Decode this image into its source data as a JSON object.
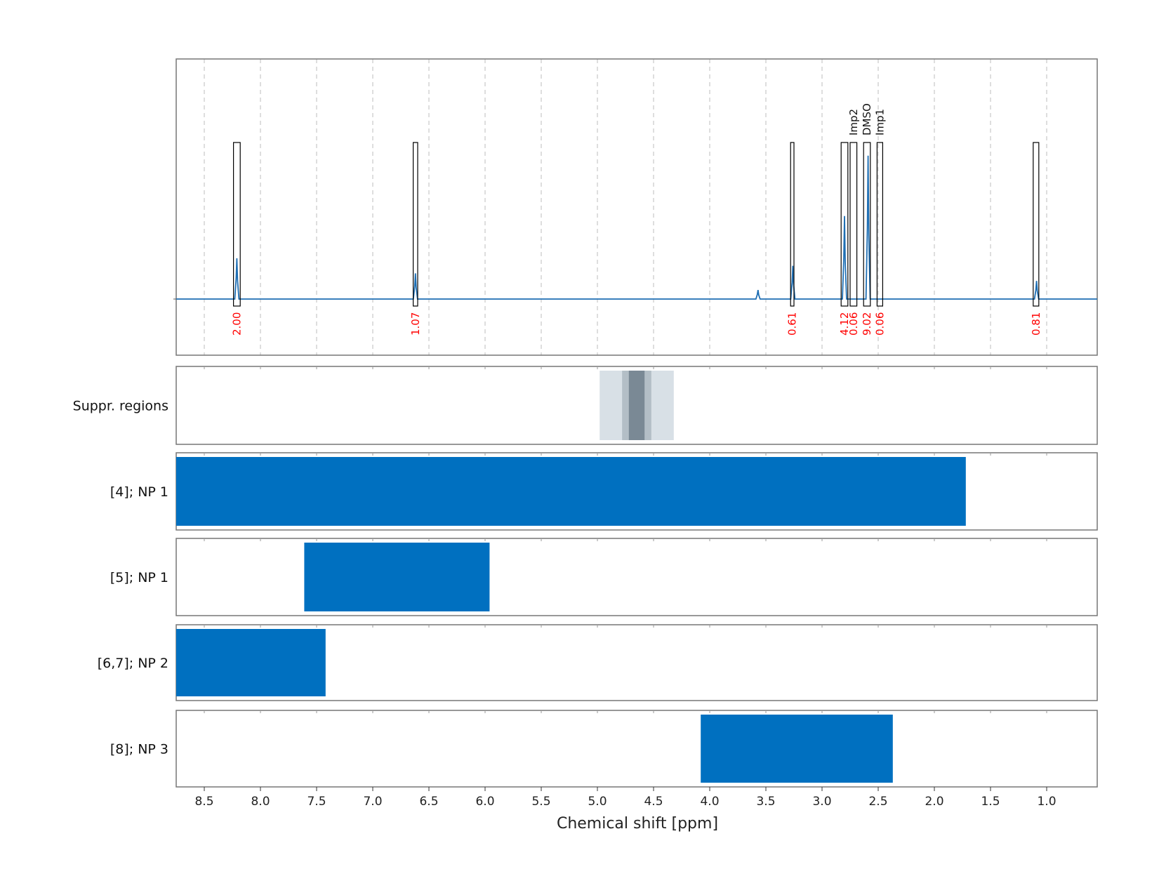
{
  "chart_data": {
    "type": "nmr-spectrum-with-range-bars",
    "xlabel": "Chemical shift [ppm]",
    "xlim": [
      8.75,
      0.55
    ],
    "x_ticks": [
      "8.5",
      "8.0",
      "7.5",
      "7.0",
      "6.5",
      "6.0",
      "5.5",
      "5.0",
      "4.5",
      "4.0",
      "3.5",
      "3.0",
      "2.5",
      "2.0",
      "1.5",
      "1.0"
    ],
    "x_tick_values": [
      8.5,
      8.0,
      7.5,
      7.0,
      6.5,
      6.0,
      5.5,
      5.0,
      4.5,
      4.0,
      3.5,
      3.0,
      2.5,
      2.0,
      1.5,
      1.0
    ],
    "colors": {
      "spectrum": "#1f6fb4",
      "bar": "#0070c0",
      "integral": "#ff0000",
      "suppr_light": "#d8e0e6",
      "suppr_mid": "#b3bec6",
      "suppr_dark": "#7a8995"
    },
    "spectrum_peaks": [
      {
        "ppm": 8.21,
        "height": 0.27
      },
      {
        "ppm": 6.62,
        "height": 0.17
      },
      {
        "ppm": 3.57,
        "height": 0.06
      },
      {
        "ppm": 3.26,
        "height": 0.22
      },
      {
        "ppm": 2.8,
        "height": 0.55
      },
      {
        "ppm": 2.59,
        "height": 0.95
      },
      {
        "ppm": 1.09,
        "height": 0.12
      }
    ],
    "integration_regions": [
      {
        "from": 8.24,
        "to": 8.18,
        "value": "2.00",
        "name": ""
      },
      {
        "from": 6.64,
        "to": 6.6,
        "value": "1.07",
        "name": ""
      },
      {
        "from": 3.28,
        "to": 3.25,
        "value": "0.61",
        "name": ""
      },
      {
        "from": 2.83,
        "to": 2.77,
        "value": "4.12",
        "name": ""
      },
      {
        "from": 2.75,
        "to": 2.69,
        "value": "0.06",
        "name": "Imp2"
      },
      {
        "from": 2.63,
        "to": 2.57,
        "value": "9.02",
        "name": "DMSO"
      },
      {
        "from": 2.51,
        "to": 2.46,
        "value": "0.06",
        "name": "Imp1"
      },
      {
        "from": 1.12,
        "to": 1.07,
        "value": "0.81",
        "name": ""
      }
    ],
    "suppression_regions": [
      {
        "from": 4.98,
        "to": 4.32,
        "level": "light"
      },
      {
        "from": 4.78,
        "to": 4.52,
        "level": "mid"
      },
      {
        "from": 4.72,
        "to": 4.58,
        "level": "dark"
      }
    ],
    "rows": [
      {
        "label": "Suppr. regions",
        "bars": []
      },
      {
        "label": "[4]; NP 1",
        "bars": [
          {
            "from": 8.75,
            "to": 1.72
          }
        ]
      },
      {
        "label": "[5]; NP 1",
        "bars": [
          {
            "from": 7.61,
            "to": 5.96
          }
        ]
      },
      {
        "label": "[6,7]; NP 2",
        "bars": [
          {
            "from": 8.75,
            "to": 7.42
          }
        ]
      },
      {
        "label": "[8]; NP 3",
        "bars": [
          {
            "from": 4.08,
            "to": 2.37
          }
        ]
      }
    ],
    "grid": true
  }
}
